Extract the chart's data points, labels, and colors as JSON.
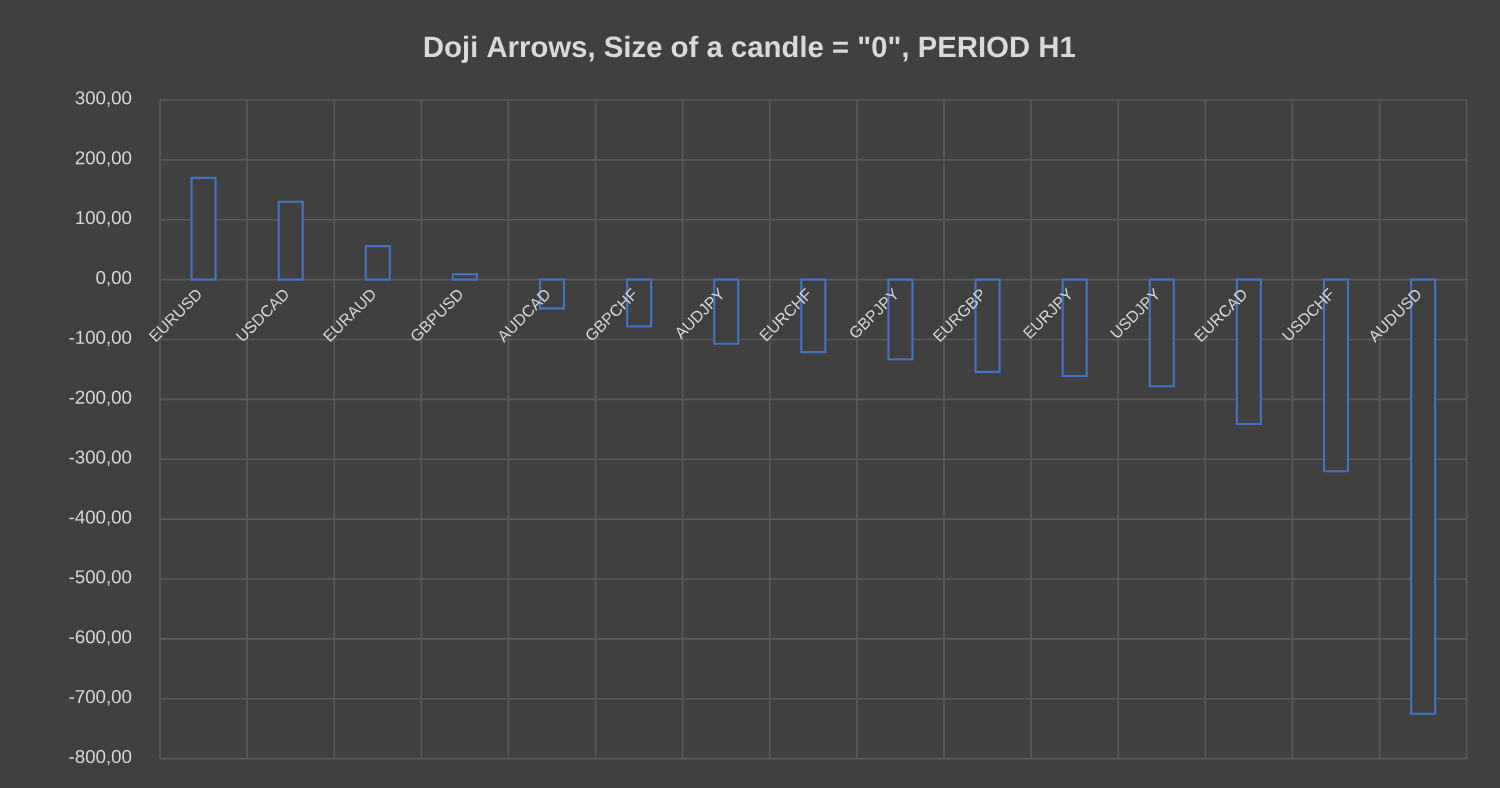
{
  "chart_data": {
    "type": "bar",
    "title": "Doji Arrows, Size of a candle = \"0\", PERIOD H1",
    "categories": [
      "EURUSD",
      "USDCAD",
      "EURAUD",
      "GBPUSD",
      "AUDCAD",
      "GBPCHF",
      "AUDJPY",
      "EURCHF",
      "GBPJPY",
      "EURGBP",
      "EURJPY",
      "USDJPY",
      "EURCAD",
      "USDCHF",
      "AUDUSD"
    ],
    "values": [
      170,
      130,
      56,
      9,
      -48,
      -78,
      -107,
      -121,
      -133,
      -154,
      -161,
      -178,
      -241,
      -320,
      -725
    ],
    "color": "#4472c4",
    "ylim": [
      -800,
      300
    ],
    "yticks": [
      {
        "value": 300,
        "label": "300,00"
      },
      {
        "value": 200,
        "label": "200,00"
      },
      {
        "value": 100,
        "label": "100,00"
      },
      {
        "value": 0,
        "label": "0,00"
      },
      {
        "value": -100,
        "label": "-100,00"
      },
      {
        "value": -200,
        "label": "-200,00"
      },
      {
        "value": -300,
        "label": "-300,00"
      },
      {
        "value": -400,
        "label": "-400,00"
      },
      {
        "value": -500,
        "label": "-500,00"
      },
      {
        "value": -600,
        "label": "-600,00"
      },
      {
        "value": -700,
        "label": "-700,00"
      },
      {
        "value": -800,
        "label": "-800,00"
      }
    ],
    "grid": true
  }
}
